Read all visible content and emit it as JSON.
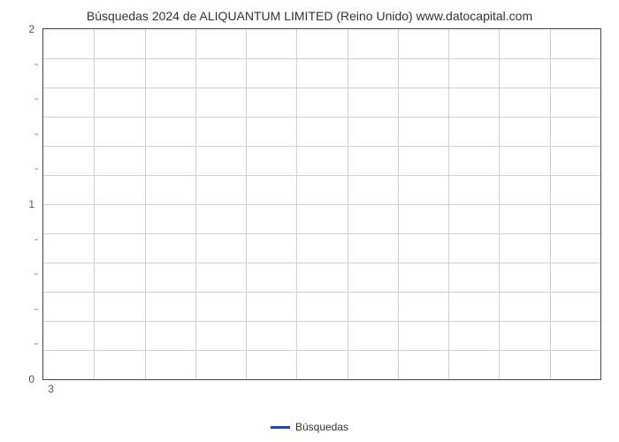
{
  "chart": {
    "type": "line",
    "title": "Búsquedas 2024 de ALIQUANTUM LIMITED (Reino Unido) www.datocapital.com",
    "title_fontsize": 14,
    "title_color": "#333333",
    "background_color": "#ffffff",
    "border_color": "#444444",
    "grid_color": "#d0d0d0",
    "ylim": [
      0,
      2
    ],
    "ytick_major": [
      0,
      1,
      2
    ],
    "ytick_minor_count": 4,
    "xtick_labels": [
      "3"
    ],
    "xgrid_count": 11,
    "ygrid_count": 12,
    "series": [],
    "legend": {
      "label": "Búsquedas",
      "color": "#2040d0",
      "swatch_width": 22,
      "swatch_height": 3,
      "fontsize": 12,
      "position": "bottom-center"
    },
    "label_fontsize": 12,
    "label_color": "#555555"
  }
}
